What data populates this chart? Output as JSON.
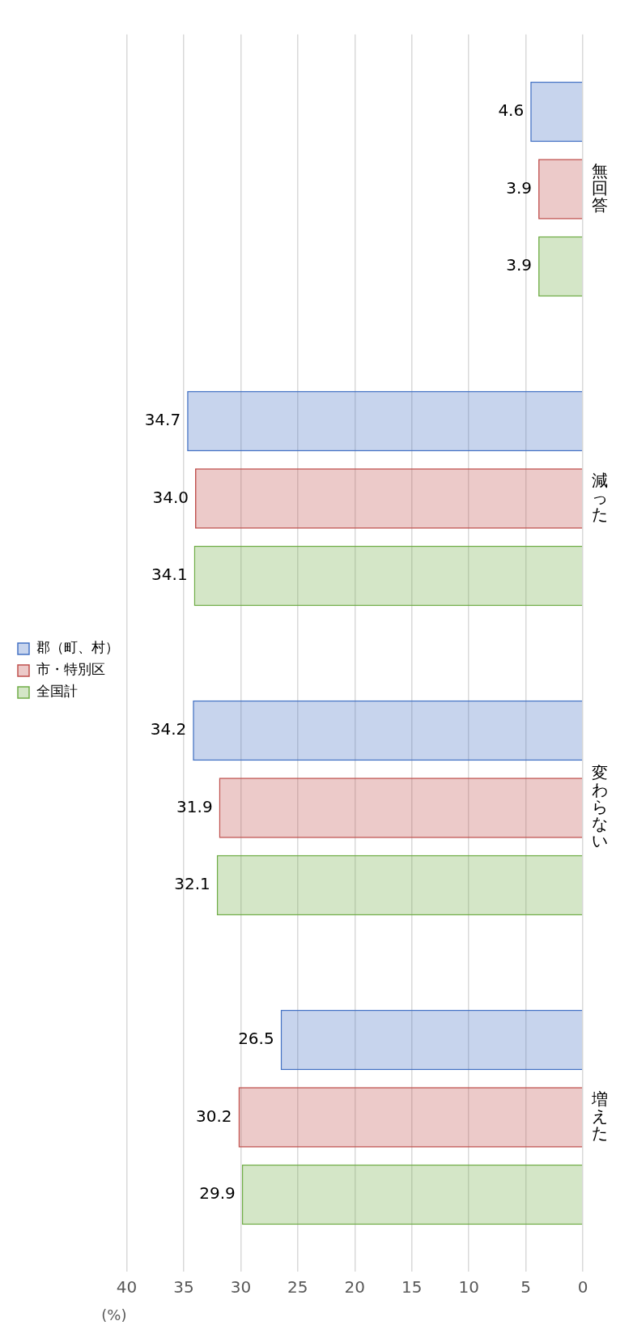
{
  "chart_data": {
    "type": "bar",
    "orientation": "horizontal",
    "xlabel": "(%)",
    "categories": [
      "無回答",
      "減った",
      "変わらない",
      "増えた"
    ],
    "series": [
      {
        "name": "全国計",
        "color": "#70ad47",
        "values": [
          3.9,
          34.1,
          32.1,
          29.9
        ],
        "value_labels": [
          "3.9",
          "34.1",
          "32.1",
          "29.9"
        ]
      },
      {
        "name": "市・特別区",
        "color": "#c0504d",
        "values": [
          3.9,
          34.0,
          31.9,
          30.2
        ],
        "value_labels": [
          "3.9",
          "34.0",
          "31.9",
          "30.2"
        ]
      },
      {
        "name": "郡（町、村）",
        "color": "#4472c4",
        "values": [
          4.6,
          34.7,
          34.2,
          26.5
        ],
        "value_labels": [
          "4.6",
          "34.7",
          "34.2",
          "26.5"
        ]
      }
    ],
    "xlim": [
      40,
      0
    ],
    "xticks": [
      0,
      5,
      10,
      15,
      20,
      25,
      30,
      35,
      40
    ],
    "grid": "x",
    "legend": "left"
  }
}
